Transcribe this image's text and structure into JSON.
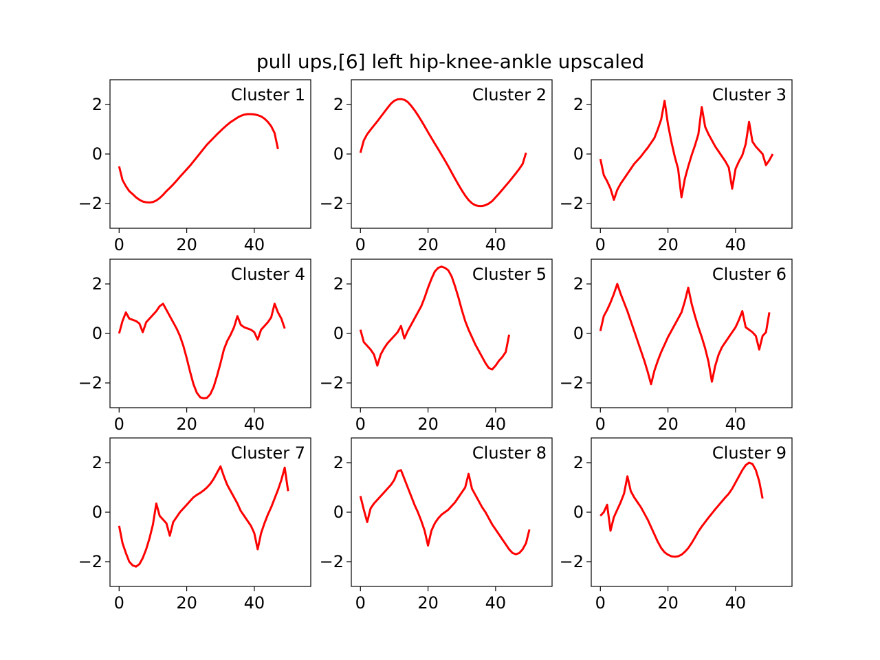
{
  "title": "pull ups,[6] left hip-knee-ankle upscaled",
  "chart_data": {
    "type": "line",
    "layout": "3x3 grid",
    "series_color": "#ff0000",
    "xlim": [
      -2.7,
      56.7
    ],
    "ylim": [
      -3,
      3
    ],
    "xticks": [
      0,
      20,
      40
    ],
    "yticks": [
      -2,
      0,
      2
    ],
    "x": [
      0,
      1,
      2,
      3,
      4,
      5,
      6,
      7,
      8,
      9,
      10,
      11,
      12,
      13,
      14,
      15,
      16,
      17,
      18,
      19,
      20,
      21,
      22,
      23,
      24,
      25,
      26,
      27,
      28,
      29,
      30,
      31,
      32,
      33,
      34,
      35,
      36,
      37,
      38,
      39,
      40,
      41,
      42,
      43,
      44,
      45,
      46,
      47,
      48,
      49,
      50,
      51,
      52,
      53,
      54
    ],
    "panels": [
      {
        "name": "Cluster 1",
        "values": [
          -0.5,
          -1.05,
          -1.3,
          -1.5,
          -1.62,
          -1.75,
          -1.85,
          -1.92,
          -1.95,
          -1.96,
          -1.94,
          -1.88,
          -1.78,
          -1.65,
          -1.5,
          -1.37,
          -1.23,
          -1.08,
          -0.92,
          -0.77,
          -0.62,
          -0.47,
          -0.3,
          -0.13,
          0.04,
          0.21,
          0.38,
          0.52,
          0.66,
          0.8,
          0.93,
          1.06,
          1.18,
          1.29,
          1.38,
          1.47,
          1.54,
          1.59,
          1.61,
          1.61,
          1.6,
          1.57,
          1.52,
          1.43,
          1.3,
          1.12,
          0.85,
          0.2
        ]
      },
      {
        "name": "Cluster 2",
        "values": [
          0.05,
          0.55,
          0.8,
          0.98,
          1.15,
          1.32,
          1.5,
          1.68,
          1.86,
          2.03,
          2.15,
          2.21,
          2.22,
          2.19,
          2.1,
          1.95,
          1.77,
          1.57,
          1.35,
          1.12,
          0.88,
          0.65,
          0.42,
          0.2,
          -0.03,
          -0.26,
          -0.5,
          -0.75,
          -1.0,
          -1.24,
          -1.47,
          -1.68,
          -1.86,
          -1.99,
          -2.07,
          -2.1,
          -2.1,
          -2.07,
          -2.0,
          -1.9,
          -1.75,
          -1.6,
          -1.44,
          -1.28,
          -1.12,
          -0.95,
          -0.78,
          -0.6,
          -0.4,
          0.05
        ]
      },
      {
        "name": "Cluster 3",
        "values": [
          -0.2,
          -0.85,
          -1.1,
          -1.4,
          -1.85,
          -1.45,
          -1.2,
          -1.0,
          -0.8,
          -0.6,
          -0.4,
          -0.25,
          -0.1,
          0.08,
          0.25,
          0.45,
          0.65,
          1.0,
          1.4,
          2.15,
          1.2,
          0.5,
          -0.1,
          -0.6,
          -1.75,
          -1.0,
          -0.5,
          -0.05,
          0.35,
          0.8,
          1.9,
          1.1,
          0.8,
          0.55,
          0.3,
          0.1,
          -0.1,
          -0.3,
          -0.55,
          -1.4,
          -0.6,
          -0.3,
          -0.05,
          0.4,
          1.3,
          0.5,
          0.3,
          0.15,
          0.0,
          -0.45,
          -0.25,
          0.0
        ]
      },
      {
        "name": "Cluster 4",
        "values": [
          0.0,
          0.5,
          0.85,
          0.6,
          0.55,
          0.5,
          0.4,
          0.05,
          0.45,
          0.6,
          0.75,
          0.9,
          1.1,
          1.2,
          0.95,
          0.7,
          0.45,
          0.2,
          -0.1,
          -0.5,
          -1.0,
          -1.55,
          -2.05,
          -2.4,
          -2.58,
          -2.62,
          -2.6,
          -2.45,
          -2.15,
          -1.7,
          -1.2,
          -0.65,
          -0.3,
          -0.05,
          0.25,
          0.7,
          0.35,
          0.25,
          0.2,
          0.15,
          0.05,
          -0.25,
          0.15,
          0.3,
          0.45,
          0.65,
          1.2,
          0.85,
          0.6,
          0.2
        ]
      },
      {
        "name": "Cluster 5",
        "values": [
          0.15,
          -0.35,
          -0.5,
          -0.65,
          -0.85,
          -1.3,
          -0.85,
          -0.6,
          -0.4,
          -0.25,
          -0.1,
          0.05,
          0.3,
          -0.2,
          0.1,
          0.35,
          0.6,
          0.85,
          1.1,
          1.45,
          1.85,
          2.2,
          2.5,
          2.65,
          2.7,
          2.65,
          2.55,
          2.3,
          1.9,
          1.45,
          0.95,
          0.5,
          0.15,
          -0.15,
          -0.45,
          -0.7,
          -0.95,
          -1.2,
          -1.4,
          -1.45,
          -1.3,
          -1.1,
          -0.95,
          -0.75,
          -0.05
        ]
      },
      {
        "name": "Cluster 6",
        "values": [
          0.1,
          0.7,
          0.95,
          1.25,
          1.6,
          2.0,
          1.6,
          1.25,
          0.9,
          0.5,
          0.1,
          -0.3,
          -0.7,
          -1.1,
          -1.55,
          -2.05,
          -1.5,
          -1.1,
          -0.75,
          -0.45,
          -0.15,
          0.1,
          0.35,
          0.6,
          0.85,
          1.3,
          1.85,
          1.2,
          0.7,
          0.25,
          -0.15,
          -0.6,
          -1.15,
          -1.95,
          -1.3,
          -0.85,
          -0.55,
          -0.35,
          -0.15,
          0.05,
          0.25,
          0.55,
          0.9,
          0.25,
          0.15,
          0.05,
          -0.1,
          -0.65,
          -0.1,
          0.05,
          0.85
        ]
      },
      {
        "name": "Cluster 7",
        "values": [
          -0.55,
          -1.25,
          -1.65,
          -2.0,
          -2.15,
          -2.2,
          -2.1,
          -1.85,
          -1.5,
          -1.05,
          -0.5,
          0.35,
          -0.15,
          -0.3,
          -0.45,
          -0.95,
          -0.4,
          -0.2,
          0.0,
          0.15,
          0.3,
          0.45,
          0.6,
          0.7,
          0.78,
          0.88,
          1.0,
          1.15,
          1.35,
          1.6,
          1.85,
          1.45,
          1.1,
          0.85,
          0.6,
          0.35,
          0.05,
          -0.15,
          -0.35,
          -0.55,
          -0.85,
          -1.5,
          -0.85,
          -0.45,
          -0.1,
          0.2,
          0.55,
          0.9,
          1.3,
          1.8,
          0.85
        ]
      },
      {
        "name": "Cluster 8",
        "values": [
          0.65,
          0.1,
          -0.4,
          0.15,
          0.35,
          0.5,
          0.65,
          0.8,
          0.95,
          1.1,
          1.3,
          1.65,
          1.7,
          1.35,
          1.0,
          0.65,
          0.3,
          0.0,
          -0.35,
          -0.75,
          -1.35,
          -0.75,
          -0.45,
          -0.25,
          -0.1,
          0.0,
          0.1,
          0.25,
          0.4,
          0.6,
          0.8,
          1.0,
          1.55,
          0.95,
          0.7,
          0.45,
          0.2,
          0.0,
          -0.25,
          -0.5,
          -0.7,
          -0.9,
          -1.1,
          -1.3,
          -1.5,
          -1.65,
          -1.7,
          -1.65,
          -1.5,
          -1.25,
          -0.7
        ]
      },
      {
        "name": "Cluster 9",
        "values": [
          -0.15,
          0.0,
          0.3,
          -0.75,
          -0.2,
          0.1,
          0.4,
          0.75,
          1.45,
          0.85,
          0.6,
          0.4,
          0.2,
          -0.05,
          -0.3,
          -0.6,
          -0.9,
          -1.2,
          -1.45,
          -1.62,
          -1.72,
          -1.78,
          -1.8,
          -1.78,
          -1.72,
          -1.6,
          -1.45,
          -1.25,
          -1.02,
          -0.78,
          -0.58,
          -0.4,
          -0.22,
          -0.05,
          0.12,
          0.28,
          0.44,
          0.6,
          0.75,
          0.95,
          1.2,
          1.45,
          1.7,
          1.9,
          2.0,
          1.95,
          1.7,
          1.25,
          0.55
        ]
      }
    ]
  }
}
